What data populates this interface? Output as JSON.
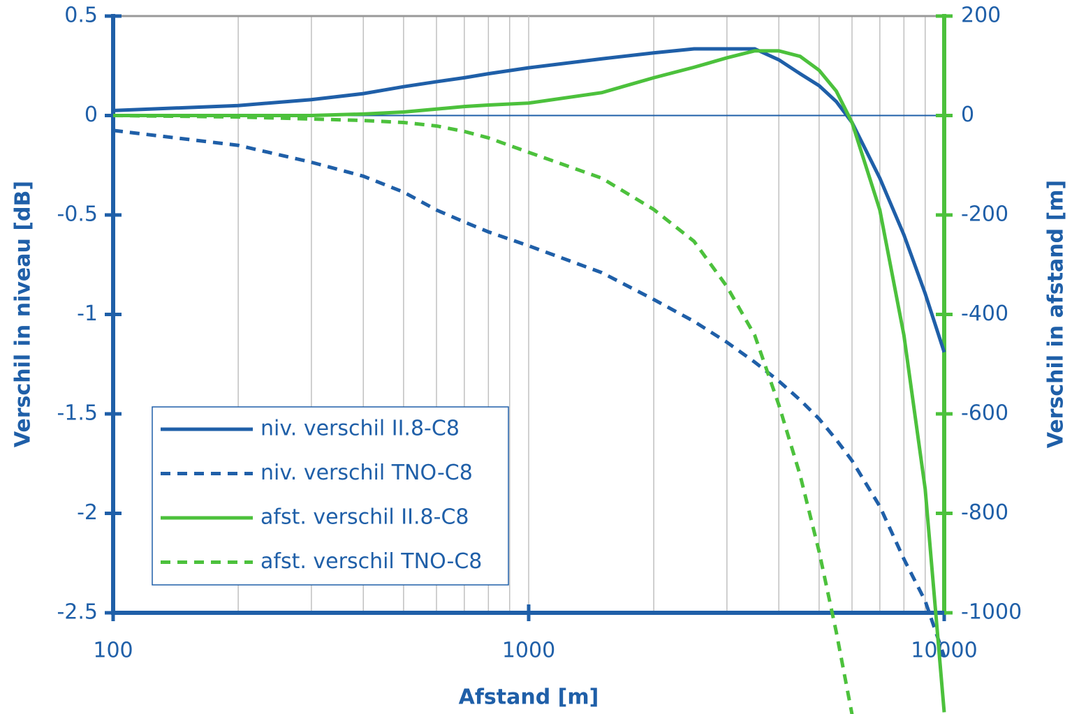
{
  "chart_data": {
    "type": "line",
    "x_label": "Afstand [m]",
    "y_label": "Verschil in niveau [dB]",
    "y2_label": "Verschil in afstand [m]",
    "x": [
      100,
      200,
      300,
      400,
      500,
      600,
      700,
      800,
      1000,
      1500,
      2000,
      2500,
      3000,
      3500,
      4000,
      4500,
      5000,
      5500,
      6000,
      7000,
      8000,
      9000,
      10000
    ],
    "series": [
      {
        "name": "niv. verschil II.8-C8",
        "color": "#1f5fa8",
        "dash": false,
        "axis": "y",
        "values": [
          0.025,
          0.05,
          0.08,
          0.11,
          0.145,
          0.17,
          0.19,
          0.21,
          0.24,
          0.285,
          0.315,
          0.335,
          0.335,
          0.335,
          0.28,
          0.21,
          0.15,
          0.07,
          -0.035,
          -0.315,
          -0.6,
          -0.895,
          -1.19
        ]
      },
      {
        "name": "niv. verschil TNO-C8",
        "color": "#1f5fa8",
        "dash": true,
        "axis": "y",
        "values": [
          -0.075,
          -0.15,
          -0.235,
          -0.305,
          -0.385,
          -0.475,
          -0.535,
          -0.585,
          -0.655,
          -0.79,
          -0.925,
          -1.035,
          -1.14,
          -1.24,
          -1.335,
          -1.43,
          -1.525,
          -1.63,
          -1.735,
          -1.965,
          -2.23,
          -2.44,
          -2.72
        ]
      },
      {
        "name": "afst. verschil II.8-C8",
        "color": "#4cc13c",
        "dash": false,
        "axis": "y2",
        "values": [
          0,
          0,
          0,
          3,
          7,
          13,
          18,
          21,
          25,
          46,
          76,
          97,
          116,
          130,
          130,
          119,
          91,
          49,
          -14,
          -190,
          -442,
          -751,
          -1200
        ]
      },
      {
        "name": "afst. verschil TNO-C8",
        "color": "#4cc13c",
        "dash": true,
        "axis": "y2",
        "values": [
          0,
          -3,
          -7,
          -10,
          -14,
          -21,
          -32,
          -45,
          -74,
          -126,
          -189,
          -253,
          -344,
          -442,
          -582,
          -723,
          -877,
          -1039,
          -1204,
          null,
          null,
          null,
          null
        ]
      }
    ],
    "x_log": true,
    "x_minor_grid": true,
    "xlim": [
      100,
      10000
    ],
    "xticks": [
      100,
      1000,
      10000
    ],
    "ylim": [
      -2.5,
      0.5
    ],
    "yticks": [
      0.5,
      0,
      -0.5,
      -1,
      -1.5,
      -2,
      -2.5
    ],
    "y2lim": [
      -1000,
      200
    ],
    "y2ticks": [
      200,
      0,
      -200,
      -400,
      -600,
      -800,
      -1000
    ],
    "legend": "lower-left"
  }
}
